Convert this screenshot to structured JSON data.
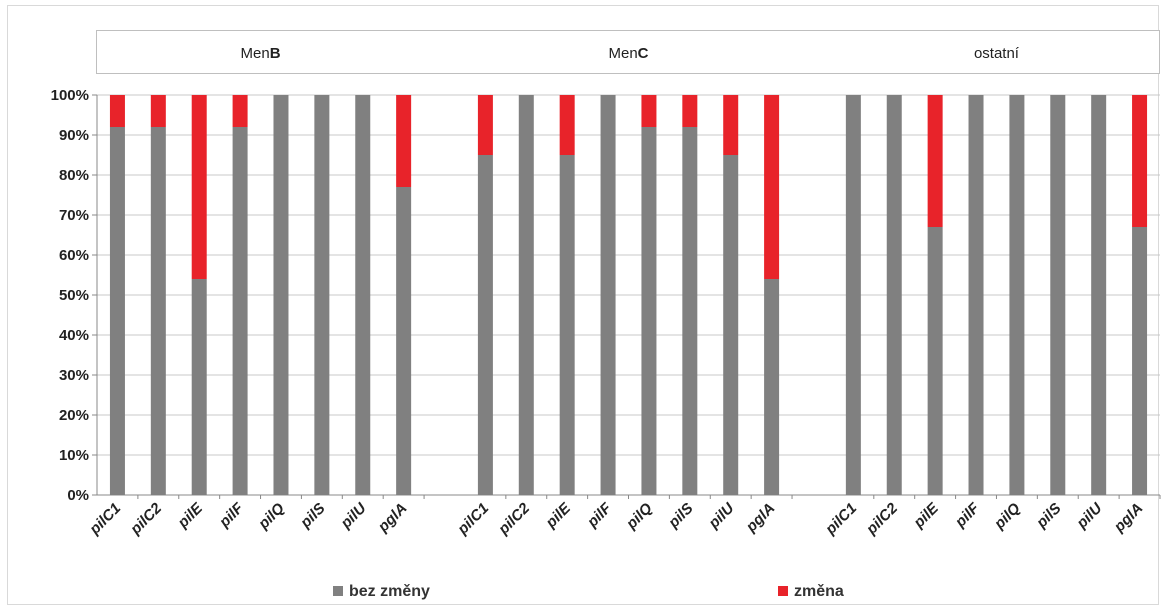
{
  "chart_data": {
    "type": "bar",
    "stacked": true,
    "groups": [
      {
        "name_prefix": "Men",
        "name_bold": "B",
        "categories": [
          "pilC1",
          "pilC2",
          "pilE",
          "pilF",
          "pilQ",
          "pilS",
          "pilU",
          "pglA"
        ],
        "series_values": {
          "bez_zmeny": [
            92,
            92,
            54,
            92,
            100,
            100,
            100,
            77
          ],
          "zmena": [
            8,
            8,
            46,
            8,
            0,
            0,
            0,
            23
          ]
        }
      },
      {
        "name_prefix": "Men",
        "name_bold": "C",
        "categories": [
          "pilC1",
          "pilC2",
          "pilE",
          "pilF",
          "pilQ",
          "pilS",
          "pilU",
          "pglA"
        ],
        "series_values": {
          "bez_zmeny": [
            85,
            100,
            85,
            100,
            92,
            92,
            85,
            54
          ],
          "zmena": [
            15,
            0,
            15,
            0,
            8,
            8,
            15,
            46
          ]
        }
      },
      {
        "name_prefix": "ostatní",
        "name_bold": "",
        "categories": [
          "pilC1",
          "pilC2",
          "pilE",
          "pilF",
          "pilQ",
          "pilS",
          "pilU",
          "pglA"
        ],
        "series_values": {
          "bez_zmeny": [
            100,
            100,
            67,
            100,
            100,
            100,
            100,
            67
          ],
          "zmena": [
            0,
            0,
            33,
            0,
            0,
            0,
            0,
            33
          ]
        }
      }
    ],
    "series": [
      {
        "key": "bez_zmeny",
        "name": "bez změny",
        "color": "#808080"
      },
      {
        "key": "zmena",
        "name": "změna",
        "color": "#e8232a"
      }
    ],
    "y_ticks": [
      "0%",
      "10%",
      "20%",
      "30%",
      "40%",
      "50%",
      "60%",
      "70%",
      "80%",
      "90%",
      "100%"
    ],
    "ylim": [
      0,
      100
    ],
    "grid": true,
    "legend_position": "bottom"
  }
}
